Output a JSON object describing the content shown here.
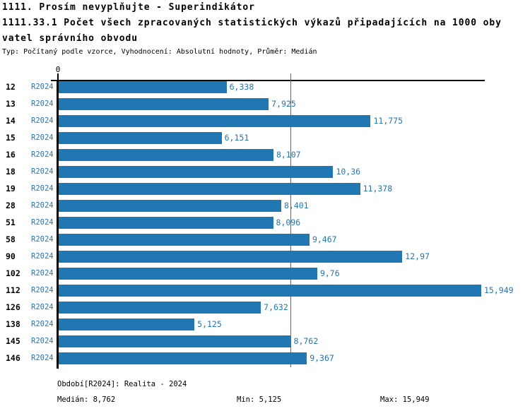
{
  "header": {
    "title": "1111. Prosím nevyplňujte - Superindikátor",
    "subtitle_line1": "1111.33.1 Počet všech zpracovaných statistických výkazů připadajících na 1000 oby",
    "subtitle_line2": "vatel správního obvodu",
    "meta": "Typ: Počítaný podle vzorce, Vyhodnocení: Absolutní hodnoty, Průměr: Medián"
  },
  "chart_data": {
    "type": "bar",
    "orientation": "horizontal",
    "series_label": "R2024",
    "categories": [
      "12",
      "13",
      "14",
      "15",
      "16",
      "18",
      "19",
      "28",
      "51",
      "58",
      "90",
      "102",
      "112",
      "126",
      "138",
      "145",
      "146"
    ],
    "values": [
      6.338,
      7.925,
      11.775,
      6.151,
      8.107,
      10.36,
      11.378,
      8.401,
      8.096,
      9.467,
      12.97,
      9.76,
      15.949,
      7.632,
      5.125,
      8.762,
      9.367
    ],
    "value_labels": [
      "6,338",
      "7,925",
      "11,775",
      "6,151",
      "8,107",
      "10,36",
      "11,378",
      "8,401",
      "8,096",
      "9,467",
      "12,97",
      "9,76",
      "15,949",
      "7,632",
      "5,125",
      "8,762",
      "9,367"
    ],
    "x_axis": {
      "zero_label": "0"
    },
    "xlim": [
      0,
      15.949
    ],
    "median_value": 8.762,
    "grid": false,
    "legend": false,
    "bar_color": "#2176b4",
    "median_line_color": "#2176b4",
    "label_color": "#2176b4",
    "axis_color": "#000000"
  },
  "footer": {
    "period": "Období[R2024]: Realita - 2024",
    "median": "Medián: 8,762",
    "min": "Min: 5,125",
    "max": "Max: 15,949"
  }
}
